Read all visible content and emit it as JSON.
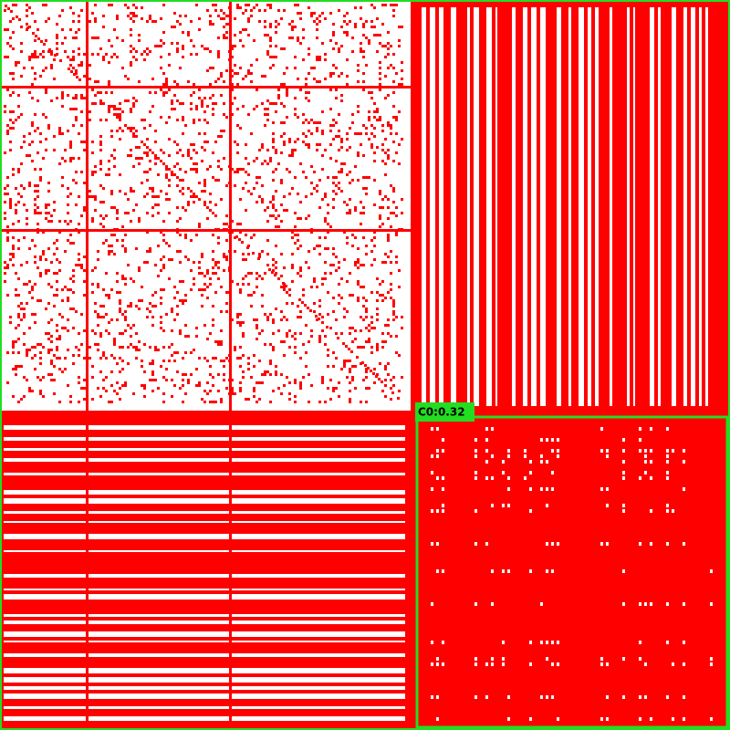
{
  "detections": [
    {
      "label": "C0:0.32"
    }
  ]
}
